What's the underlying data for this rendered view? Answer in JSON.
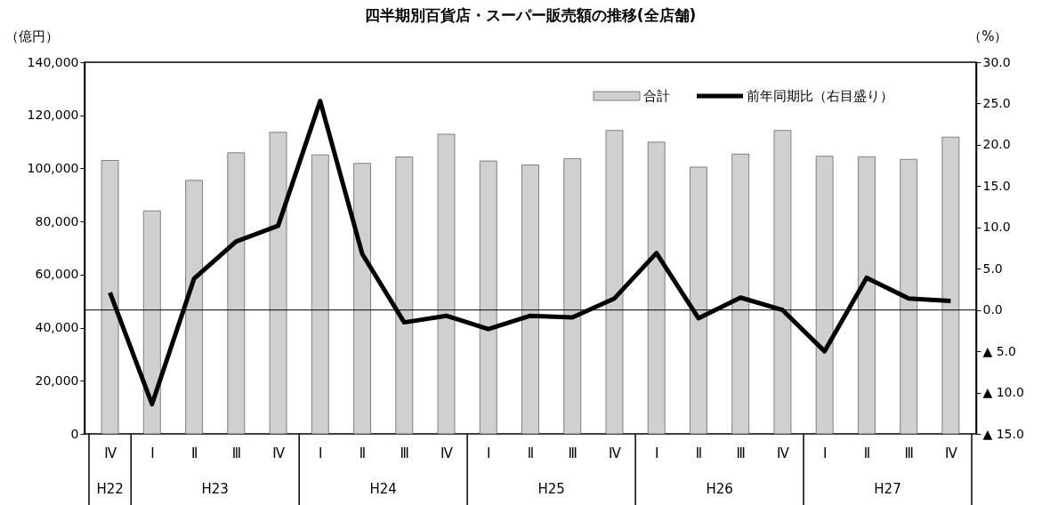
{
  "chart_data": {
    "type": "bar",
    "title": "四半期別百貨店・スーパー販売額の推移(全店舗)",
    "ylabel": "（億円）",
    "y2label": "（%）",
    "categories": [
      "Ⅳ",
      "Ⅰ",
      "Ⅱ",
      "Ⅲ",
      "Ⅳ",
      "Ⅰ",
      "Ⅱ",
      "Ⅲ",
      "Ⅳ",
      "Ⅰ",
      "Ⅱ",
      "Ⅲ",
      "Ⅳ",
      "Ⅰ",
      "Ⅱ",
      "Ⅲ",
      "Ⅳ",
      "Ⅰ",
      "Ⅱ",
      "Ⅲ",
      "Ⅳ"
    ],
    "annotations": [
      "H22",
      "H23",
      "H24",
      "H25",
      "H26",
      "H27"
    ],
    "series": [
      {
        "name": "合計",
        "color": "#d0d0d0",
        "values": [
          103000,
          84000,
          95500,
          105900,
          113600,
          105100,
          101900,
          104300,
          112900,
          102800,
          101300,
          103700,
          114300,
          109900,
          100500,
          105400,
          114300,
          104600,
          104400,
          103400,
          111800
        ]
      },
      {
        "name": "前年同期比（右目盛り）",
        "type": "line",
        "axis": "y2",
        "color": "#000000",
        "values": [
          2.1,
          -11.4,
          3.8,
          8.3,
          10.2,
          25.3,
          6.8,
          -1.5,
          -0.7,
          -2.3,
          -0.7,
          -0.9,
          1.4,
          6.9,
          -1.0,
          1.5,
          0.0,
          -5.0,
          3.9,
          1.4,
          1.1
        ]
      }
    ],
    "ylim": [
      0,
      140000
    ],
    "yticks": [
      {
        "value": 0,
        "label": "0"
      },
      {
        "value": 20000,
        "label": "20,000"
      },
      {
        "value": 40000,
        "label": "40,000"
      },
      {
        "value": 60000,
        "label": "60,000"
      },
      {
        "value": 80000,
        "label": "80,000"
      },
      {
        "value": 100000,
        "label": "100,000"
      },
      {
        "value": 120000,
        "label": "120,000"
      },
      {
        "value": 140000,
        "label": "140,000"
      }
    ],
    "y2lim": [
      -15,
      30
    ],
    "y2ticks": [
      {
        "value": -15,
        "label": "▲ 15.0"
      },
      {
        "value": -10,
        "label": "▲ 10.0"
      },
      {
        "value": -5,
        "label": "▲ 5.0"
      },
      {
        "value": 0,
        "label": "0.0"
      },
      {
        "value": 5,
        "label": "5.0"
      },
      {
        "value": 10,
        "label": "10.0"
      },
      {
        "value": 15,
        "label": "15.0"
      },
      {
        "value": 20,
        "label": "20.0"
      },
      {
        "value": 25,
        "label": "25.0"
      },
      {
        "value": 30,
        "label": "30.0"
      }
    ],
    "ref_lines": [
      {
        "axis": "y2",
        "value": 0
      }
    ],
    "legend": "top right",
    "grid": false,
    "line_style": "solid",
    "marker": "none"
  }
}
